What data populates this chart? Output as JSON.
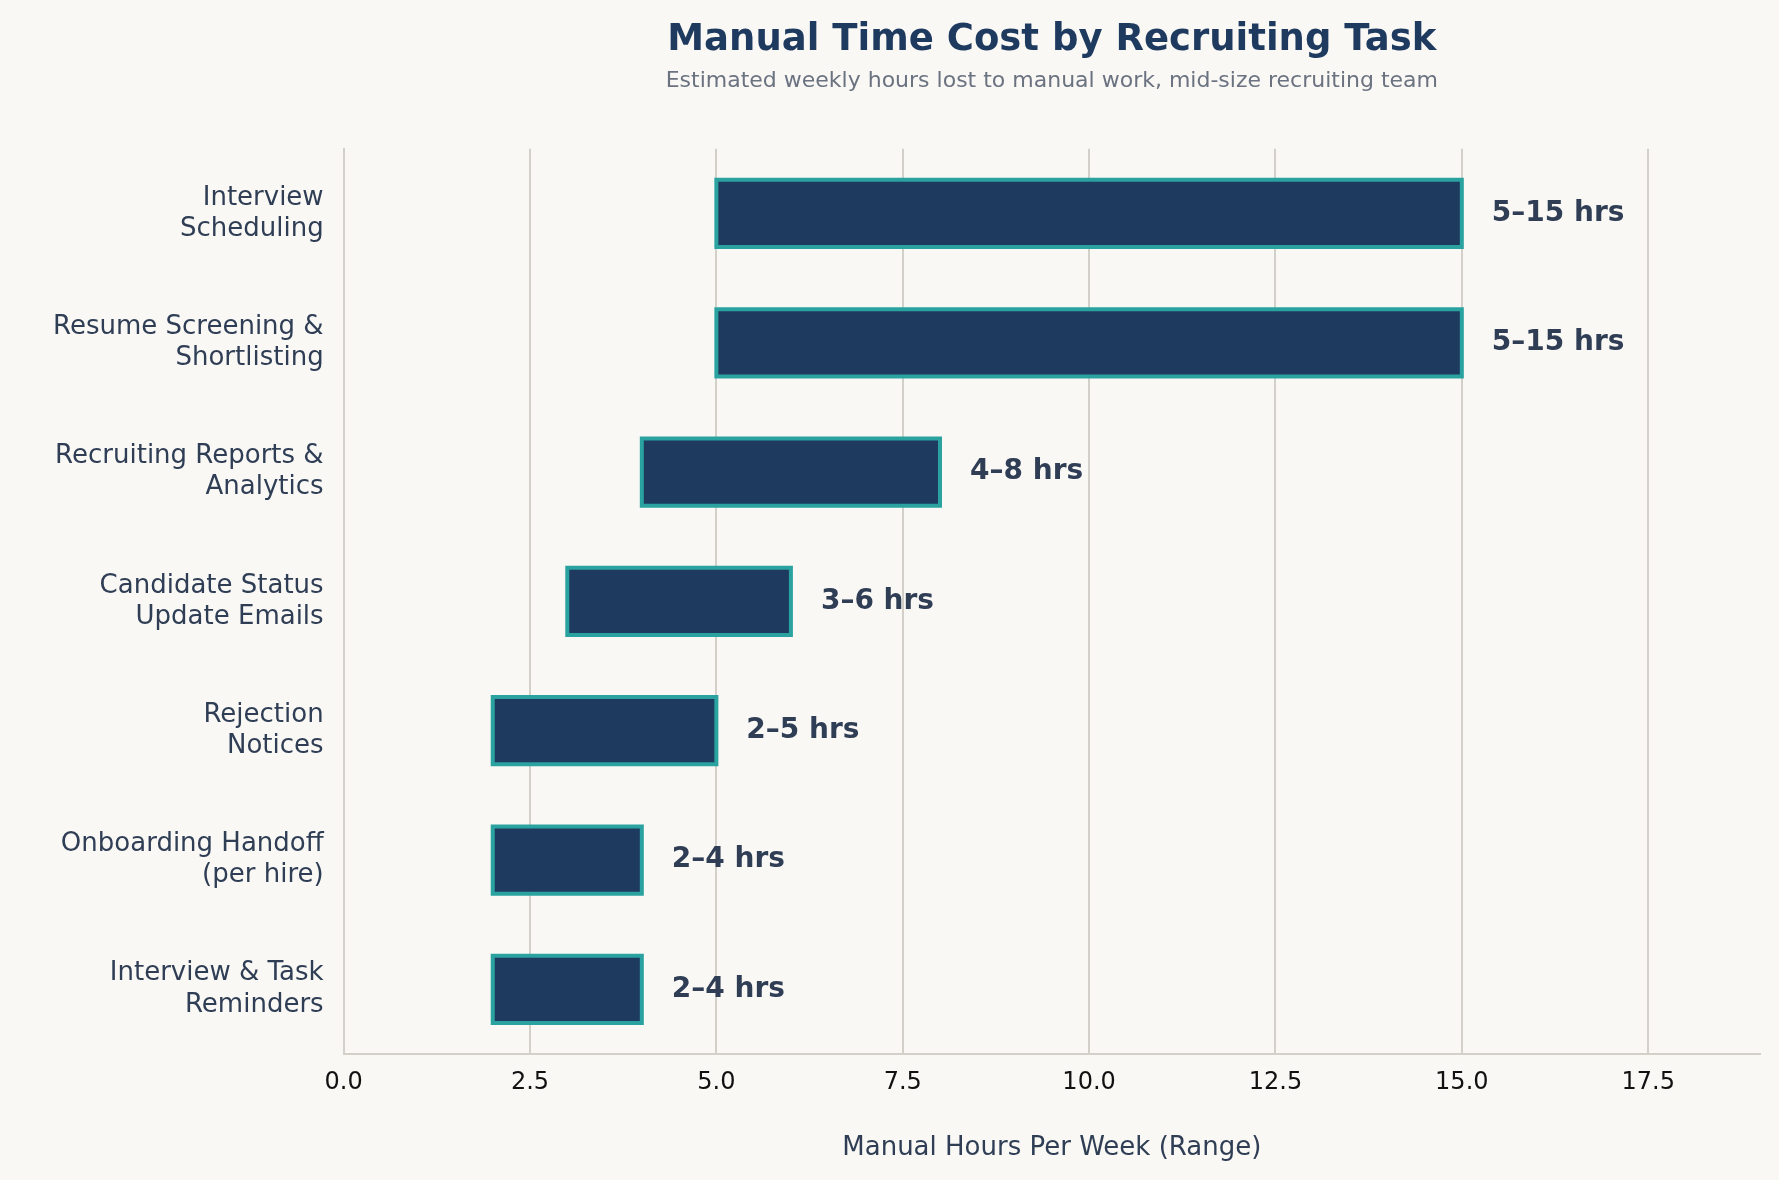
{
  "chart_data": {
    "type": "bar",
    "orientation": "horizontal",
    "title": "Manual Time Cost by Recruiting Task",
    "subtitle": "Estimated weekly hours lost to manual work, mid-size recruiting team",
    "xlabel": "Manual Hours Per Week (Range)",
    "categories": [
      "Interview\nScheduling",
      "Resume Screening &\nShortlisting",
      "Recruiting Reports &\nAnalytics",
      "Candidate Status\nUpdate Emails",
      "Rejection\nNotices",
      "Onboarding Handoff\n(per hire)",
      "Interview & Task\nReminders"
    ],
    "base": [
      5,
      5,
      4,
      3,
      2,
      2,
      2
    ],
    "values": [
      10,
      10,
      4,
      3,
      3,
      2,
      2
    ],
    "color": "#1f3a5f",
    "value_labels": [
      "5–15 hrs",
      "5–15 hrs",
      "4–8 hrs",
      "3–6 hrs",
      "2–5 hrs",
      "2–4 hrs",
      "2–4 hrs"
    ],
    "xlim": [
      0,
      19
    ],
    "xticks": [
      {
        "value": 0,
        "label": "0.0"
      },
      2.5,
      {
        "value": 5,
        "label": "5.0"
      },
      7.5,
      {
        "value": 10,
        "label": "10.0"
      },
      12.5,
      {
        "value": 15,
        "label": "15.0"
      },
      17.5
    ],
    "grid": "x",
    "legend": false
  }
}
